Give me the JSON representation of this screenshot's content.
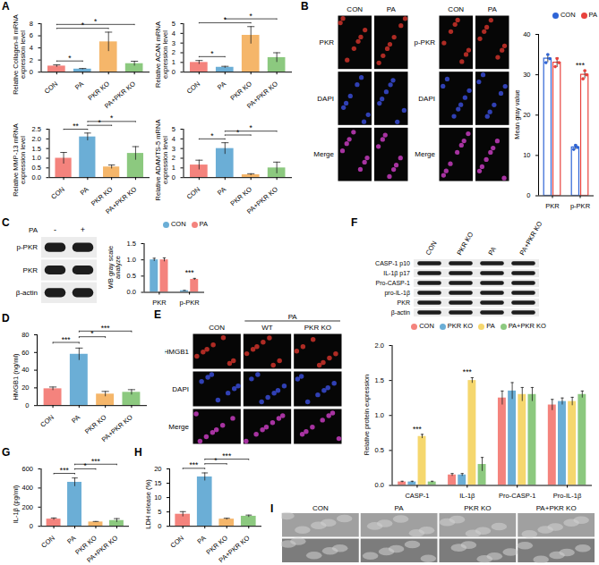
{
  "panel_letters": [
    "A",
    "B",
    "C",
    "D",
    "E",
    "F",
    "G",
    "H",
    "I"
  ],
  "chart_data": [
    {
      "type": "bar",
      "y_label": "Relative Collagen-II mRNA expression level",
      "categories": [
        "CON",
        "PA",
        "PKR KO",
        "PA+PKR KO"
      ],
      "values": [
        1.0,
        0.5,
        5.0,
        1.4
      ],
      "errors": [
        0.2,
        0.1,
        1.6,
        0.4
      ],
      "colors": [
        "#F4837D",
        "#6BAED6",
        "#F5B66A",
        "#8CC97F"
      ],
      "ylim": [
        0,
        8
      ],
      "yticks": [
        0,
        2,
        4,
        6,
        8
      ],
      "significance": [
        {
          "from": "CON",
          "to": "PA",
          "label": "*"
        },
        {
          "from": "CON",
          "to": "PKR KO",
          "label": "*"
        },
        {
          "from": "CON",
          "to": "PA+PKR KO",
          "label": "*"
        }
      ]
    },
    {
      "type": "bar",
      "y_label": "Relative ACAN mRNA expression level",
      "categories": [
        "CON",
        "PA",
        "PKR KO",
        "PA+PKR KO"
      ],
      "values": [
        1.0,
        0.5,
        3.8,
        1.5
      ],
      "errors": [
        0.2,
        0.1,
        0.9,
        0.5
      ],
      "colors": [
        "#F4837D",
        "#6BAED6",
        "#F5B66A",
        "#8CC97F"
      ],
      "ylim": [
        0,
        5
      ],
      "yticks": [
        0,
        1,
        2,
        3,
        4,
        5
      ],
      "significance": [
        {
          "from": "CON",
          "to": "PA",
          "label": "*"
        },
        {
          "from": "CON",
          "to": "PKR KO",
          "label": "*"
        },
        {
          "from": "PA",
          "to": "PA+PKR KO",
          "label": "*"
        }
      ]
    },
    {
      "type": "bar",
      "y_label": "Relative MMP-13 mRNA expression level",
      "categories": [
        "CON",
        "PA",
        "PKR KO",
        "PA+PKR KO"
      ],
      "values": [
        1.0,
        2.1,
        0.55,
        1.25
      ],
      "errors": [
        0.3,
        0.2,
        0.1,
        0.35
      ],
      "colors": [
        "#F4837D",
        "#6BAED6",
        "#F5B66A",
        "#8CC97F"
      ],
      "ylim": [
        0,
        2.5
      ],
      "yticks": [
        {
          "value": 0,
          "label": "0.0"
        },
        0.5,
        {
          "value": 1,
          "label": "1.0"
        },
        1.5,
        {
          "value": 2,
          "label": "2.0"
        },
        2.5
      ],
      "significance": [
        {
          "from": "CON",
          "to": "PA",
          "label": "**"
        },
        {
          "from": "PA",
          "to": "PKR KO",
          "label": "*"
        },
        {
          "from": "PA",
          "to": "PA+PKR KO",
          "label": "*"
        }
      ]
    },
    {
      "type": "bar",
      "y_label": "Relative ADAMTS-5 mRNA expression level",
      "categories": [
        "CON",
        "PA",
        "PKR KO",
        "PA+PKR KO"
      ],
      "values": [
        1.3,
        3.0,
        0.3,
        1.0
      ],
      "errors": [
        0.5,
        0.6,
        0.1,
        0.6
      ],
      "colors": [
        "#F4837D",
        "#6BAED6",
        "#F5B66A",
        "#8CC97F"
      ],
      "ylim": [
        0,
        5
      ],
      "yticks": [
        0,
        1,
        2,
        3,
        4,
        5
      ],
      "significance": [
        {
          "from": "CON",
          "to": "PA",
          "label": "*"
        },
        {
          "from": "PA",
          "to": "PKR KO",
          "label": "*"
        },
        {
          "from": "PA",
          "to": "PA+PKR KO",
          "label": "*"
        }
      ]
    },
    {
      "type": "bar",
      "y_label": "Mean gray value",
      "categories": [
        "PKR",
        "p-PKR"
      ],
      "series": [
        {
          "name": "CON",
          "color": "#2E64D6",
          "values": [
            34,
            12
          ],
          "errors": [
            1.0,
            0.6
          ],
          "points": [
            [
              33,
              35,
              34
            ],
            [
              11.5,
              12.5,
              12
            ]
          ]
        },
        {
          "name": "PA",
          "color": "#E8413C",
          "values": [
            33,
            30
          ],
          "errors": [
            1.2,
            1.0
          ],
          "points": [
            [
              32,
              34,
              33
            ],
            [
              29,
              31,
              30
            ]
          ]
        }
      ],
      "ylim": [
        0,
        40
      ],
      "yticks": [
        0,
        10,
        20,
        30,
        40
      ],
      "legend": "top right",
      "significance": [
        {
          "category": "p-PKR",
          "label": "***"
        }
      ]
    },
    {
      "type": "bar",
      "y_label": "WB gray scale analyze",
      "categories": [
        "PKR",
        "p-PKR"
      ],
      "series": [
        {
          "name": "CON",
          "color": "#6BAED6",
          "values": [
            1.0,
            0.05
          ],
          "errors": [
            0.05,
            0.01
          ]
        },
        {
          "name": "PA",
          "color": "#F4837D",
          "values": [
            1.0,
            0.4
          ],
          "errors": [
            0.06,
            0.03
          ]
        }
      ],
      "ylim": [
        0,
        1.5
      ],
      "yticks": [
        {
          "value": 0,
          "label": "0.0"
        },
        0.5,
        {
          "value": 1,
          "label": "1.0"
        },
        1.5
      ],
      "legend": "top right",
      "significance": [
        {
          "category": "p-PKR",
          "label": "***"
        }
      ]
    },
    {
      "type": "bar",
      "y_label": "HMGB1 (ng/ml)",
      "categories": [
        "CON",
        "PA",
        "PKR KO",
        "PA+PKR KO"
      ],
      "values": [
        19,
        58,
        13,
        15
      ],
      "errors": [
        2,
        7,
        3,
        3
      ],
      "colors": [
        "#F4837D",
        "#6BAED6",
        "#F5B66A",
        "#8CC97F"
      ],
      "ylim": [
        0,
        80
      ],
      "yticks": [
        0,
        20,
        40,
        60,
        80
      ],
      "significance": [
        {
          "from": "CON",
          "to": "PA",
          "label": "***"
        },
        {
          "from": "PA",
          "to": "PKR KO",
          "label": "*"
        },
        {
          "from": "PA",
          "to": "PA+PKR KO",
          "label": "***"
        }
      ]
    },
    {
      "type": "bar",
      "y_label": "Relative protein expression",
      "categories": [
        "CASP-1",
        "IL-1β",
        "Pro-CASP-1",
        "Pro-IL-1β"
      ],
      "series": [
        {
          "name": "CON",
          "color": "#F4837D",
          "values": [
            0.05,
            0.15,
            1.25,
            1.15
          ],
          "errors": [
            0.01,
            0.02,
            0.1,
            0.08
          ]
        },
        {
          "name": "PKR KO",
          "color": "#6BAED6",
          "values": [
            0.05,
            0.15,
            1.35,
            1.2
          ],
          "errors": [
            0.01,
            0.02,
            0.12,
            0.05
          ]
        },
        {
          "name": "PA",
          "color": "#F5D76E",
          "values": [
            0.7,
            1.5,
            1.3,
            1.2
          ],
          "errors": [
            0.03,
            0.04,
            0.1,
            0.06
          ]
        },
        {
          "name": "PA+PKR KO",
          "color": "#8CC97F",
          "values": [
            0.05,
            0.3,
            1.3,
            1.3
          ],
          "errors": [
            0.01,
            0.1,
            0.1,
            0.05
          ]
        }
      ],
      "ylim": [
        0,
        2
      ],
      "yticks": [
        {
          "value": 0,
          "label": "0.0"
        },
        0.5,
        {
          "value": 1,
          "label": "1.0"
        },
        1.5,
        {
          "value": 2,
          "label": "2.0"
        }
      ],
      "legend": "top",
      "significance": [
        {
          "category": "CASP-1",
          "label": "***"
        },
        {
          "category": "IL-1β",
          "label": "***"
        }
      ]
    },
    {
      "type": "bar",
      "y_label": "IL-1β (pg/ml)",
      "categories": [
        "CON",
        "PA",
        "PKR KO",
        "PA+PKR KO"
      ],
      "values": [
        75,
        460,
        45,
        60
      ],
      "errors": [
        12,
        45,
        5,
        20
      ],
      "colors": [
        "#F4837D",
        "#6BAED6",
        "#F5B66A",
        "#8CC97F"
      ],
      "ylim": [
        0,
        600
      ],
      "yticks": [
        0,
        200,
        400,
        600
      ],
      "significance": [
        {
          "from": "CON",
          "to": "PA",
          "label": "***"
        },
        {
          "from": "PA",
          "to": "PKR KO",
          "label": "*"
        },
        {
          "from": "PA",
          "to": "PA+PKR KO",
          "label": "***"
        }
      ]
    },
    {
      "type": "bar",
      "y_label": "LDH release (%)",
      "categories": [
        "CON",
        "PA",
        "PKR KO",
        "PA+PKR KO"
      ],
      "values": [
        4.2,
        17.2,
        2.5,
        3.5
      ],
      "errors": [
        0.9,
        1.4,
        0.3,
        0.4
      ],
      "colors": [
        "#F4837D",
        "#6BAED6",
        "#F5B66A",
        "#8CC97F"
      ],
      "ylim": [
        0,
        20
      ],
      "yticks": [
        0,
        5,
        10,
        15,
        20
      ],
      "significance": [
        {
          "from": "CON",
          "to": "PA",
          "label": "***"
        },
        {
          "from": "PA",
          "to": "PKR KO",
          "label": "*"
        },
        {
          "from": "PA",
          "to": "PA+PKR KO",
          "label": "***"
        }
      ]
    }
  ],
  "image_panels": [
    {
      "type": "fluorescence",
      "groups": [
        {
          "columns": [
            "CON",
            "PA"
          ],
          "rows": [
            "PKR",
            "DAPI",
            "Merge"
          ]
        },
        {
          "columns": [
            "CON",
            "PA"
          ],
          "rows": [
            "p-PKR",
            "DAPI",
            "Merge"
          ]
        }
      ]
    },
    {
      "type": "western_blot",
      "column_header": "PA",
      "columns": [
        "-",
        "+"
      ],
      "rows": [
        "p-PKR",
        "PKR",
        "β-actin"
      ]
    },
    {
      "type": "fluorescence",
      "columns": [
        "CON",
        "WT",
        "PKR KO"
      ],
      "column_group": {
        "label": "PA",
        "span": [
          "WT",
          "PKR KO"
        ]
      },
      "rows": [
        "HMGB1",
        "DAPI",
        "Merge"
      ]
    },
    {
      "type": "western_blot",
      "columns": [
        "CON",
        "PKR KO",
        "PA",
        "PA+PKR KO"
      ],
      "rows": [
        "CASP-1 p10",
        "IL-1β p17",
        "Pro-CASP-1",
        "pro-IL-1β",
        "PKR",
        "β-actin"
      ]
    },
    {
      "type": "sem",
      "columns": [
        "CON",
        "PA",
        "PKR KO",
        "PA+PKR KO"
      ]
    }
  ]
}
